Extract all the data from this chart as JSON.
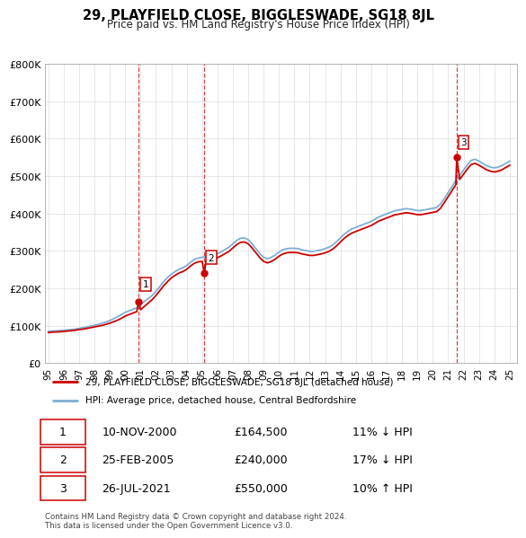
{
  "title": "29, PLAYFIELD CLOSE, BIGGLESWADE, SG18 8JL",
  "subtitle": "Price paid vs. HM Land Registry's House Price Index (HPI)",
  "ylabel_values": [
    "£0",
    "£100K",
    "£200K",
    "£300K",
    "£400K",
    "£500K",
    "£600K",
    "£700K",
    "£800K"
  ],
  "ylim": [
    0,
    800000
  ],
  "xlim_start": 1994.8,
  "xlim_end": 2025.5,
  "legend_line1": "29, PLAYFIELD CLOSE, BIGGLESWADE, SG18 8JL (detached house)",
  "legend_line2": "HPI: Average price, detached house, Central Bedfordshire",
  "sale_dates": [
    2000.87,
    2005.15,
    2021.56
  ],
  "sale_prices": [
    164500,
    240000,
    550000
  ],
  "sale_labels": [
    "1",
    "2",
    "3"
  ],
  "vline_dates": [
    2000.87,
    2005.15,
    2021.56
  ],
  "table_rows": [
    [
      "1",
      "10-NOV-2000",
      "£164,500",
      "11% ↓ HPI"
    ],
    [
      "2",
      "25-FEB-2005",
      "£240,000",
      "17% ↓ HPI"
    ],
    [
      "3",
      "26-JUL-2021",
      "£550,000",
      "10% ↑ HPI"
    ]
  ],
  "footer": "Contains HM Land Registry data © Crown copyright and database right 2024.\nThis data is licensed under the Open Government Licence v3.0.",
  "line_color_red": "#cc0000",
  "line_color_blue": "#7bafd4",
  "vline_color": "#cc0000",
  "background_color": "#ffffff",
  "grid_color": "#dddddd",
  "hpi_base_values": [
    [
      1995.0,
      85000
    ],
    [
      1995.25,
      86000
    ],
    [
      1995.5,
      86500
    ],
    [
      1995.75,
      87000
    ],
    [
      1996.0,
      88000
    ],
    [
      1996.25,
      89000
    ],
    [
      1996.5,
      90000
    ],
    [
      1996.75,
      91000
    ],
    [
      1997.0,
      93000
    ],
    [
      1997.25,
      95000
    ],
    [
      1997.5,
      97000
    ],
    [
      1997.75,
      99000
    ],
    [
      1998.0,
      101000
    ],
    [
      1998.25,
      104000
    ],
    [
      1998.5,
      107000
    ],
    [
      1998.75,
      110000
    ],
    [
      1999.0,
      114000
    ],
    [
      1999.25,
      119000
    ],
    [
      1999.5,
      124000
    ],
    [
      1999.75,
      130000
    ],
    [
      2000.0,
      136000
    ],
    [
      2000.25,
      140000
    ],
    [
      2000.5,
      144000
    ],
    [
      2000.75,
      148000
    ],
    [
      2001.0,
      157000
    ],
    [
      2001.25,
      165000
    ],
    [
      2001.5,
      173000
    ],
    [
      2001.75,
      181000
    ],
    [
      2002.0,
      192000
    ],
    [
      2002.25,
      205000
    ],
    [
      2002.5,
      218000
    ],
    [
      2002.75,
      229000
    ],
    [
      2003.0,
      238000
    ],
    [
      2003.25,
      245000
    ],
    [
      2003.5,
      251000
    ],
    [
      2003.75,
      255000
    ],
    [
      2004.0,
      261000
    ],
    [
      2004.25,
      270000
    ],
    [
      2004.5,
      277000
    ],
    [
      2004.75,
      281000
    ],
    [
      2005.0,
      283000
    ],
    [
      2005.25,
      285000
    ],
    [
      2005.5,
      287000
    ],
    [
      2005.75,
      289000
    ],
    [
      2006.0,
      293000
    ],
    [
      2006.25,
      298000
    ],
    [
      2006.5,
      304000
    ],
    [
      2006.75,
      310000
    ],
    [
      2007.0,
      319000
    ],
    [
      2007.25,
      328000
    ],
    [
      2007.5,
      334000
    ],
    [
      2007.75,
      335000
    ],
    [
      2008.0,
      330000
    ],
    [
      2008.25,
      319000
    ],
    [
      2008.5,
      306000
    ],
    [
      2008.75,
      293000
    ],
    [
      2009.0,
      283000
    ],
    [
      2009.25,
      279000
    ],
    [
      2009.5,
      283000
    ],
    [
      2009.75,
      289000
    ],
    [
      2010.0,
      297000
    ],
    [
      2010.25,
      303000
    ],
    [
      2010.5,
      306000
    ],
    [
      2010.75,
      307000
    ],
    [
      2011.0,
      307000
    ],
    [
      2011.25,
      306000
    ],
    [
      2011.5,
      303000
    ],
    [
      2011.75,
      301000
    ],
    [
      2012.0,
      299000
    ],
    [
      2012.25,
      299000
    ],
    [
      2012.5,
      301000
    ],
    [
      2012.75,
      303000
    ],
    [
      2013.0,
      306000
    ],
    [
      2013.25,
      310000
    ],
    [
      2013.5,
      316000
    ],
    [
      2013.75,
      325000
    ],
    [
      2014.0,
      335000
    ],
    [
      2014.25,
      345000
    ],
    [
      2014.5,
      353000
    ],
    [
      2014.75,
      359000
    ],
    [
      2015.0,
      363000
    ],
    [
      2015.25,
      367000
    ],
    [
      2015.5,
      371000
    ],
    [
      2015.75,
      375000
    ],
    [
      2016.0,
      379000
    ],
    [
      2016.25,
      385000
    ],
    [
      2016.5,
      391000
    ],
    [
      2016.75,
      395000
    ],
    [
      2017.0,
      399000
    ],
    [
      2017.25,
      403000
    ],
    [
      2017.5,
      407000
    ],
    [
      2017.75,
      409000
    ],
    [
      2018.0,
      411000
    ],
    [
      2018.25,
      413000
    ],
    [
      2018.5,
      412000
    ],
    [
      2018.75,
      410000
    ],
    [
      2019.0,
      408000
    ],
    [
      2019.25,
      408000
    ],
    [
      2019.5,
      410000
    ],
    [
      2019.75,
      412000
    ],
    [
      2020.0,
      414000
    ],
    [
      2020.25,
      416000
    ],
    [
      2020.5,
      425000
    ],
    [
      2020.75,
      440000
    ],
    [
      2021.0,
      456000
    ],
    [
      2021.25,
      472000
    ],
    [
      2021.5,
      488000
    ],
    [
      2021.75,
      502000
    ],
    [
      2022.0,
      516000
    ],
    [
      2022.25,
      530000
    ],
    [
      2022.5,
      542000
    ],
    [
      2022.75,
      545000
    ],
    [
      2023.0,
      540000
    ],
    [
      2023.25,
      534000
    ],
    [
      2023.5,
      528000
    ],
    [
      2023.75,
      524000
    ],
    [
      2024.0,
      522000
    ],
    [
      2024.25,
      524000
    ],
    [
      2024.5,
      528000
    ],
    [
      2024.75,
      534000
    ],
    [
      2025.0,
      540000
    ]
  ],
  "price_paid_values": [
    [
      1995.0,
      82000
    ],
    [
      1995.25,
      83000
    ],
    [
      1995.5,
      83500
    ],
    [
      1995.75,
      84000
    ],
    [
      1996.0,
      85000
    ],
    [
      1996.25,
      86000
    ],
    [
      1996.5,
      87000
    ],
    [
      1996.75,
      88000
    ],
    [
      1997.0,
      90000
    ],
    [
      1997.25,
      91000
    ],
    [
      1997.5,
      93000
    ],
    [
      1997.75,
      95000
    ],
    [
      1998.0,
      97000
    ],
    [
      1998.25,
      99000
    ],
    [
      1998.5,
      101000
    ],
    [
      1998.75,
      104000
    ],
    [
      1999.0,
      107000
    ],
    [
      1999.25,
      111000
    ],
    [
      1999.5,
      115000
    ],
    [
      1999.75,
      120000
    ],
    [
      2000.0,
      126000
    ],
    [
      2000.25,
      130000
    ],
    [
      2000.5,
      134000
    ],
    [
      2000.75,
      138000
    ],
    [
      2000.87,
      164500
    ],
    [
      2001.0,
      143000
    ],
    [
      2001.25,
      152000
    ],
    [
      2001.5,
      161000
    ],
    [
      2001.75,
      170000
    ],
    [
      2002.0,
      181000
    ],
    [
      2002.25,
      194000
    ],
    [
      2002.5,
      207000
    ],
    [
      2002.75,
      218000
    ],
    [
      2003.0,
      228000
    ],
    [
      2003.25,
      235000
    ],
    [
      2003.5,
      241000
    ],
    [
      2003.75,
      245000
    ],
    [
      2004.0,
      251000
    ],
    [
      2004.25,
      260000
    ],
    [
      2004.5,
      267000
    ],
    [
      2004.75,
      271000
    ],
    [
      2005.0,
      272000
    ],
    [
      2005.15,
      240000
    ],
    [
      2005.25,
      274000
    ],
    [
      2005.5,
      276000
    ],
    [
      2005.75,
      278000
    ],
    [
      2006.0,
      282000
    ],
    [
      2006.25,
      287000
    ],
    [
      2006.5,
      293000
    ],
    [
      2006.75,
      299000
    ],
    [
      2007.0,
      308000
    ],
    [
      2007.25,
      317000
    ],
    [
      2007.5,
      323000
    ],
    [
      2007.75,
      324000
    ],
    [
      2008.0,
      319000
    ],
    [
      2008.25,
      308000
    ],
    [
      2008.5,
      295000
    ],
    [
      2008.75,
      282000
    ],
    [
      2009.0,
      272000
    ],
    [
      2009.25,
      268000
    ],
    [
      2009.5,
      272000
    ],
    [
      2009.75,
      278000
    ],
    [
      2010.0,
      286000
    ],
    [
      2010.25,
      292000
    ],
    [
      2010.5,
      295000
    ],
    [
      2010.75,
      296000
    ],
    [
      2011.0,
      296000
    ],
    [
      2011.25,
      295000
    ],
    [
      2011.5,
      292000
    ],
    [
      2011.75,
      290000
    ],
    [
      2012.0,
      288000
    ],
    [
      2012.25,
      288000
    ],
    [
      2012.5,
      290000
    ],
    [
      2012.75,
      292000
    ],
    [
      2013.0,
      295000
    ],
    [
      2013.25,
      299000
    ],
    [
      2013.5,
      305000
    ],
    [
      2013.75,
      314000
    ],
    [
      2014.0,
      324000
    ],
    [
      2014.25,
      334000
    ],
    [
      2014.5,
      342000
    ],
    [
      2014.75,
      348000
    ],
    [
      2015.0,
      352000
    ],
    [
      2015.25,
      356000
    ],
    [
      2015.5,
      360000
    ],
    [
      2015.75,
      364000
    ],
    [
      2016.0,
      368000
    ],
    [
      2016.25,
      374000
    ],
    [
      2016.5,
      380000
    ],
    [
      2016.75,
      384000
    ],
    [
      2017.0,
      388000
    ],
    [
      2017.25,
      392000
    ],
    [
      2017.5,
      396000
    ],
    [
      2017.75,
      398000
    ],
    [
      2018.0,
      400000
    ],
    [
      2018.25,
      402000
    ],
    [
      2018.5,
      401000
    ],
    [
      2018.75,
      399000
    ],
    [
      2019.0,
      397000
    ],
    [
      2019.25,
      397000
    ],
    [
      2019.5,
      399000
    ],
    [
      2019.75,
      401000
    ],
    [
      2020.0,
      403000
    ],
    [
      2020.25,
      405000
    ],
    [
      2020.5,
      414000
    ],
    [
      2020.75,
      429000
    ],
    [
      2021.0,
      445000
    ],
    [
      2021.25,
      461000
    ],
    [
      2021.5,
      477000
    ],
    [
      2021.56,
      550000
    ],
    [
      2021.75,
      491000
    ],
    [
      2022.0,
      505000
    ],
    [
      2022.25,
      519000
    ],
    [
      2022.5,
      531000
    ],
    [
      2022.75,
      534000
    ],
    [
      2023.0,
      529000
    ],
    [
      2023.25,
      523000
    ],
    [
      2023.5,
      517000
    ],
    [
      2023.75,
      513000
    ],
    [
      2024.0,
      511000
    ],
    [
      2024.25,
      513000
    ],
    [
      2024.5,
      517000
    ],
    [
      2024.75,
      523000
    ],
    [
      2025.0,
      529000
    ]
  ]
}
